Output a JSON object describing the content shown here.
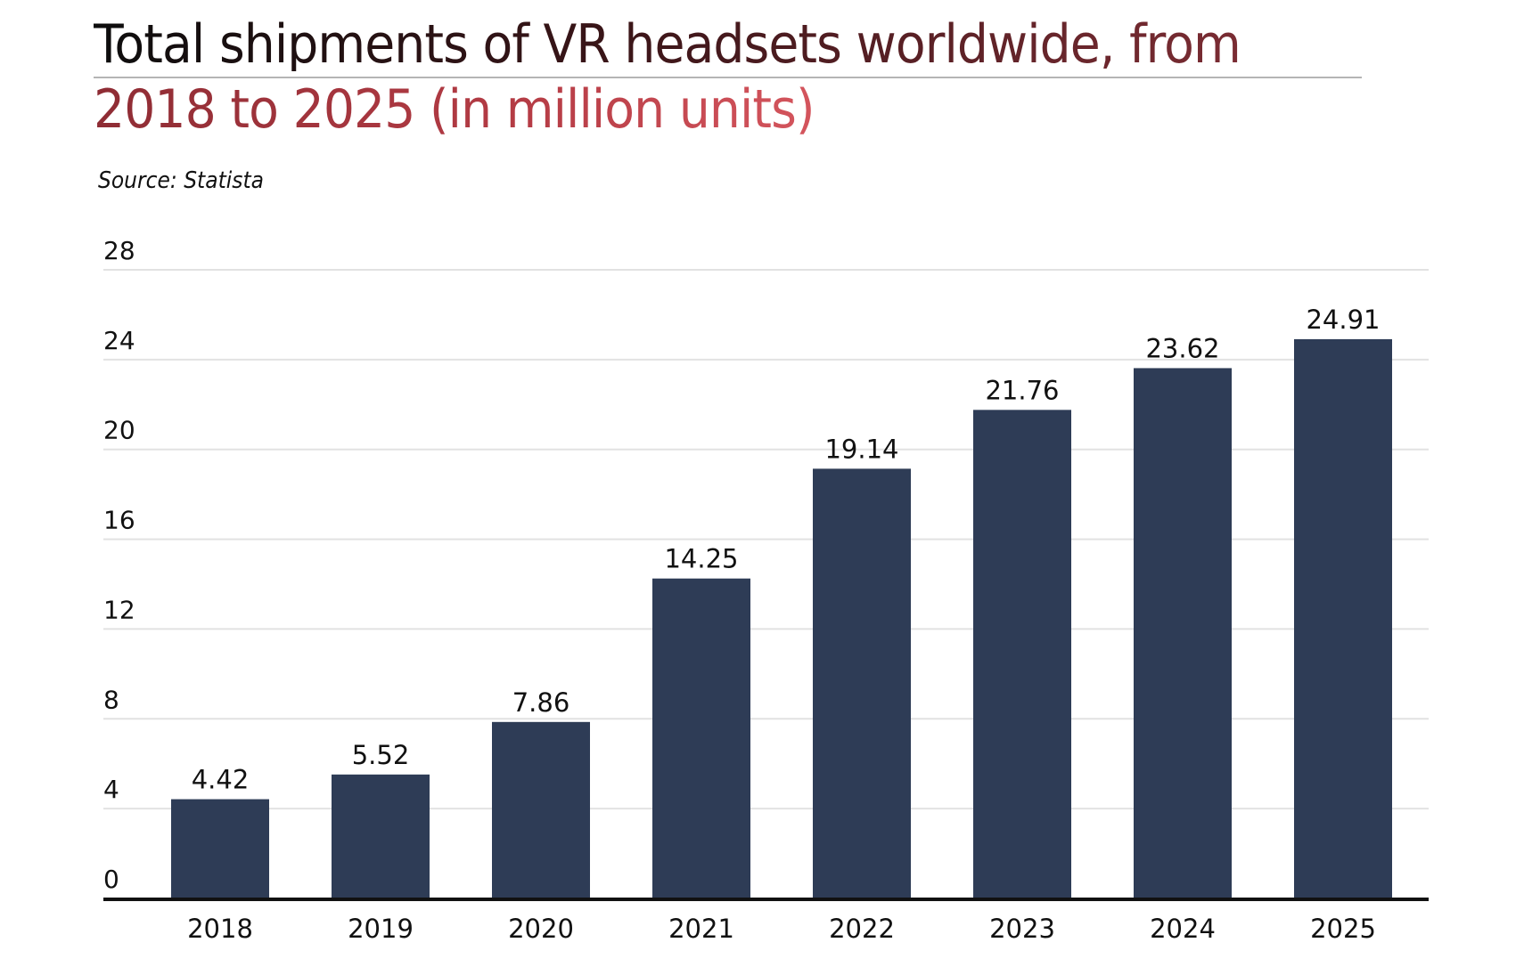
{
  "chart_data": {
    "type": "bar",
    "title": "Total shipments of VR headsets worldwide, from 2018 to 2025 (in million units)",
    "title_lines": [
      "Total shipments of VR headsets worldwide, from",
      "2018 to 2025 (in million units)"
    ],
    "source": "Source: Statista",
    "categories": [
      "2018",
      "2019",
      "2020",
      "2021",
      "2022",
      "2023",
      "2024",
      "2025"
    ],
    "values": [
      4.42,
      5.52,
      7.86,
      14.25,
      19.14,
      21.76,
      23.62,
      24.91
    ],
    "value_labels": [
      "4.42",
      "5.52",
      "7.86",
      "14.25",
      "19.14",
      "21.76",
      "23.62",
      "24.91"
    ],
    "xlabel": "",
    "ylabel": "",
    "ylim": [
      0,
      28
    ],
    "yticks": [
      0,
      4,
      8,
      12,
      16,
      20,
      24,
      28
    ],
    "grid": true,
    "colors": {
      "bar": "#2e3c56",
      "grid": "#e2e2e2",
      "axis": "#111111"
    }
  }
}
